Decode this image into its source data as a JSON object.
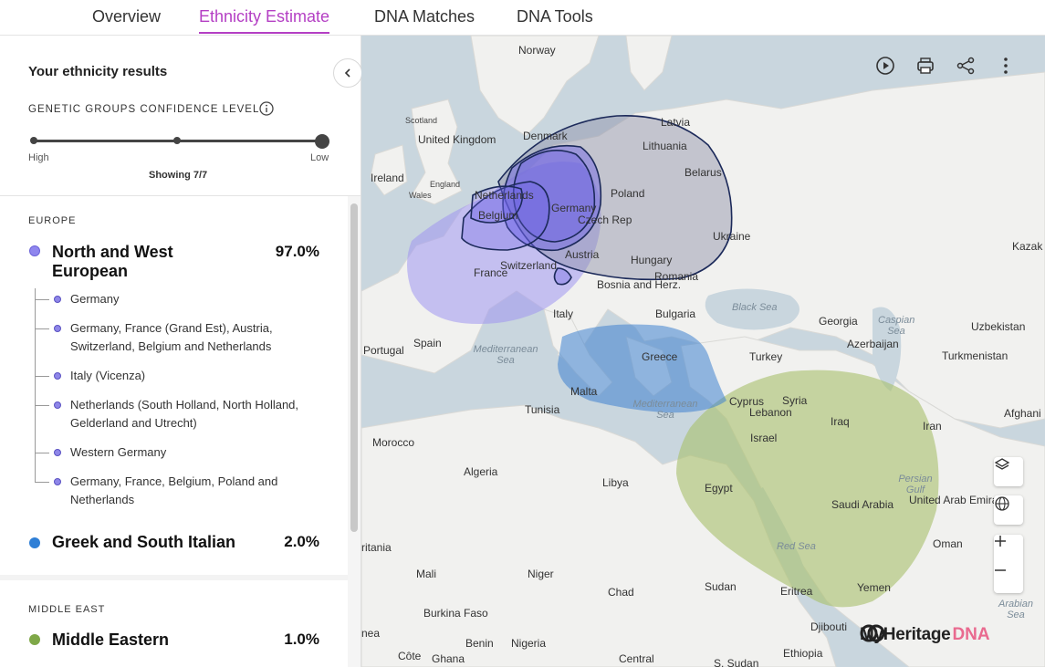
{
  "tabs": [
    {
      "label": "Overview"
    },
    {
      "label": "Ethnicity Estimate"
    },
    {
      "label": "DNA Matches"
    },
    {
      "label": "DNA Tools"
    }
  ],
  "panel": {
    "title": "Your ethnicity results",
    "confidence_label": "GENETIC GROUPS CONFIDENCE LEVEL",
    "slider_high": "High",
    "slider_low": "Low",
    "showing": "Showing 7/7"
  },
  "regions": [
    {
      "label": "EUROPE",
      "groups": [
        {
          "name": "North and West European",
          "percent": "97.0%",
          "color": "#8f86ee",
          "subgroups": [
            "Germany",
            "Germany, France (Grand Est), Austria, Switzerland, Belgium and Netherlands",
            "Italy (Vicenza)",
            "Netherlands (South Holland, North Holland, Gelderland and Utrecht)",
            "Western Germany",
            "Germany, France, Belgium, Poland and Netherlands"
          ]
        },
        {
          "name": "Greek and South Italian",
          "percent": "2.0%",
          "color": "#2f7fd6"
        }
      ]
    },
    {
      "label": "MIDDLE EAST",
      "groups": [
        {
          "name": "Middle Eastern",
          "percent": "1.0%",
          "color": "#7fa848"
        }
      ]
    }
  ],
  "map": {
    "countries": [
      "Norway",
      "Scotland",
      "United Kingdom",
      "England",
      "Wales",
      "Ireland",
      "Denmark",
      "Latvia",
      "Lithuania",
      "Belarus",
      "Poland",
      "Ukraine",
      "Germany",
      "Czech Rep",
      "Austria",
      "Hungary",
      "Romania",
      "Switzerland",
      "France",
      "Bosnia and Herz.",
      "Bulgaria",
      "Italy",
      "Georgia",
      "Kazak",
      "Uzbekistan",
      "Azerbaijan",
      "Turkmenistan",
      "Spain",
      "Portugal",
      "Greece",
      "Turkey",
      "Malta",
      "Cyprus",
      "Syria",
      "Lebanon",
      "Iraq",
      "Iran",
      "Afghani",
      "Tunisia",
      "Israel",
      "Morocco",
      "Algeria",
      "Libya",
      "Egypt",
      "Saudi Arabia",
      "United Arab Emirates",
      "Oman",
      "Yemen",
      "Sudan",
      "Eritrea",
      "Chad",
      "Niger",
      "Mali",
      "ritania",
      "Burkina Faso",
      "Benin",
      "Nigeria",
      "Central",
      "Djibouti",
      "Ethiopia",
      "S. Sudan",
      "nea",
      "Côte",
      "Ghana",
      "Belgium",
      "Netherlands"
    ],
    "seas": [
      "Black Sea",
      "Caspian Sea",
      "Mediterranean Sea",
      "Mediterranean Sea",
      "Red Sea",
      "Persian Gulf",
      "Arabian Sea"
    ],
    "brand": "MyHeritage",
    "brand_suffix": "DNA"
  }
}
